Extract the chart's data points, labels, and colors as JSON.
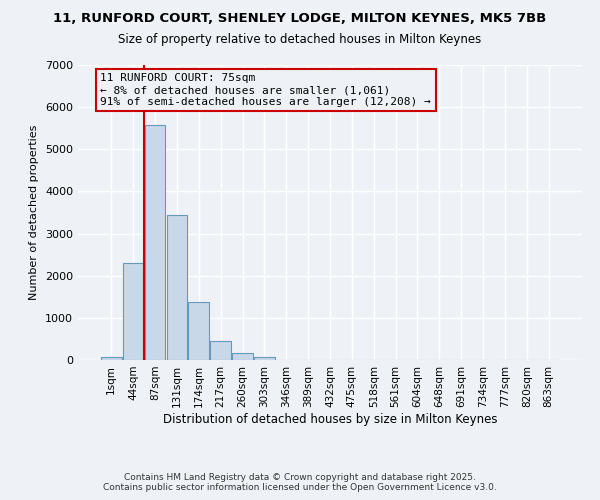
{
  "title": "11, RUNFORD COURT, SHENLEY LODGE, MILTON KEYNES, MK5 7BB",
  "subtitle": "Size of property relative to detached houses in Milton Keynes",
  "xlabel": "Distribution of detached houses by size in Milton Keynes",
  "ylabel": "Number of detached properties",
  "bin_labels": [
    "1sqm",
    "44sqm",
    "87sqm",
    "131sqm",
    "174sqm",
    "217sqm",
    "260sqm",
    "303sqm",
    "346sqm",
    "389sqm",
    "432sqm",
    "475sqm",
    "518sqm",
    "561sqm",
    "604sqm",
    "648sqm",
    "691sqm",
    "734sqm",
    "777sqm",
    "820sqm",
    "863sqm"
  ],
  "bar_heights": [
    70,
    2300,
    5580,
    3450,
    1380,
    460,
    175,
    60,
    10,
    0,
    0,
    0,
    0,
    0,
    0,
    0,
    0,
    0,
    0,
    0,
    0
  ],
  "bar_color": "#c8d8e8",
  "bar_edge_color": "#6699bb",
  "ylim": [
    0,
    7000
  ],
  "yticks": [
    0,
    1000,
    2000,
    3000,
    4000,
    5000,
    6000,
    7000
  ],
  "property_line_x": 1.5,
  "property_line_color": "#cc0000",
  "annotation_title": "11 RUNFORD COURT: 75sqm",
  "annotation_line1": "← 8% of detached houses are smaller (1,061)",
  "annotation_line2": "91% of semi-detached houses are larger (12,208) →",
  "annotation_box_color": "#cc0000",
  "background_color": "#eef2f7",
  "grid_color": "#ffffff",
  "footer1": "Contains HM Land Registry data © Crown copyright and database right 2025.",
  "footer2": "Contains public sector information licensed under the Open Government Licence v3.0."
}
